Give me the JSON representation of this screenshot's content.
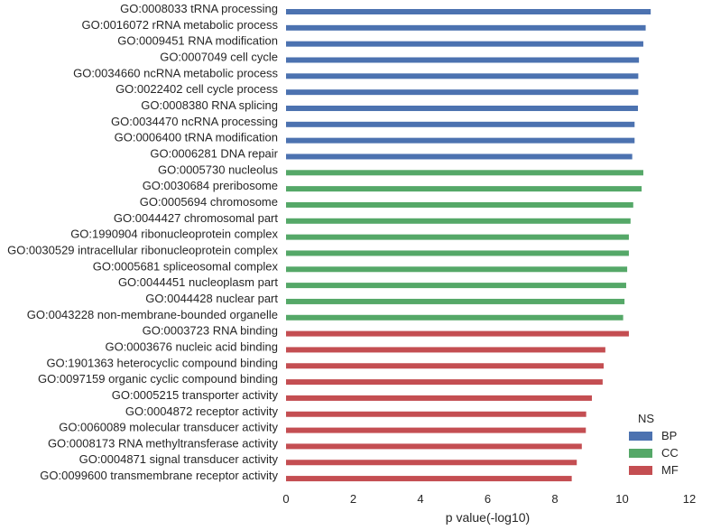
{
  "chart_data": {
    "type": "bar",
    "orientation": "horizontal",
    "xlabel": "p value(-log10)",
    "ylabel": "",
    "xlim": [
      0,
      12
    ],
    "xticks": [
      0,
      2,
      4,
      6,
      8,
      10,
      12
    ],
    "grid": false,
    "legend": {
      "title": "NS",
      "position": "bottom-right",
      "entries": [
        {
          "name": "BP",
          "color": "#4C72B0"
        },
        {
          "name": "CC",
          "color": "#55A868"
        },
        {
          "name": "MF",
          "color": "#C44E52"
        }
      ]
    },
    "categories": [
      "GO:0008033 tRNA processing",
      "GO:0016072 rRNA metabolic process",
      "GO:0009451 RNA modification",
      "GO:0007049 cell cycle",
      "GO:0034660 ncRNA metabolic process",
      "GO:0022402 cell cycle process",
      "GO:0008380 RNA splicing",
      "GO:0034470 ncRNA processing",
      "GO:0006400 tRNA modification",
      "GO:0006281 DNA repair",
      "GO:0005730 nucleolus",
      "GO:0030684 preribosome",
      "GO:0005694 chromosome",
      "GO:0044427 chromosomal part",
      "GO:1990904 ribonucleoprotein complex",
      "GO:0030529 intracellular ribonucleoprotein complex",
      "GO:0005681 spliceosomal complex",
      "GO:0044451 nucleoplasm part",
      "GO:0044428 nuclear part",
      "GO:0043228 non-membrane-bounded organelle",
      "GO:0003723 RNA binding",
      "GO:0003676 nucleic acid binding",
      "GO:1901363 heterocyclic compound binding",
      "GO:0097159 organic cyclic compound binding",
      "GO:0005215 transporter activity",
      "GO:0004872 receptor activity",
      "GO:0060089 molecular transducer activity",
      "GO:0008173 RNA methyltransferase activity",
      "GO:0004871 signal transducer activity",
      "GO:0099600 transmembrane receptor activity"
    ],
    "values": [
      10.85,
      10.7,
      10.63,
      10.5,
      10.48,
      10.48,
      10.47,
      10.37,
      10.37,
      10.3,
      10.63,
      10.58,
      10.33,
      10.25,
      10.2,
      10.2,
      10.15,
      10.12,
      10.07,
      10.03,
      10.2,
      9.5,
      9.45,
      9.42,
      9.1,
      8.93,
      8.92,
      8.8,
      8.65,
      8.5
    ],
    "groups": [
      "BP",
      "BP",
      "BP",
      "BP",
      "BP",
      "BP",
      "BP",
      "BP",
      "BP",
      "BP",
      "CC",
      "CC",
      "CC",
      "CC",
      "CC",
      "CC",
      "CC",
      "CC",
      "CC",
      "CC",
      "MF",
      "MF",
      "MF",
      "MF",
      "MF",
      "MF",
      "MF",
      "MF",
      "MF",
      "MF"
    ]
  }
}
